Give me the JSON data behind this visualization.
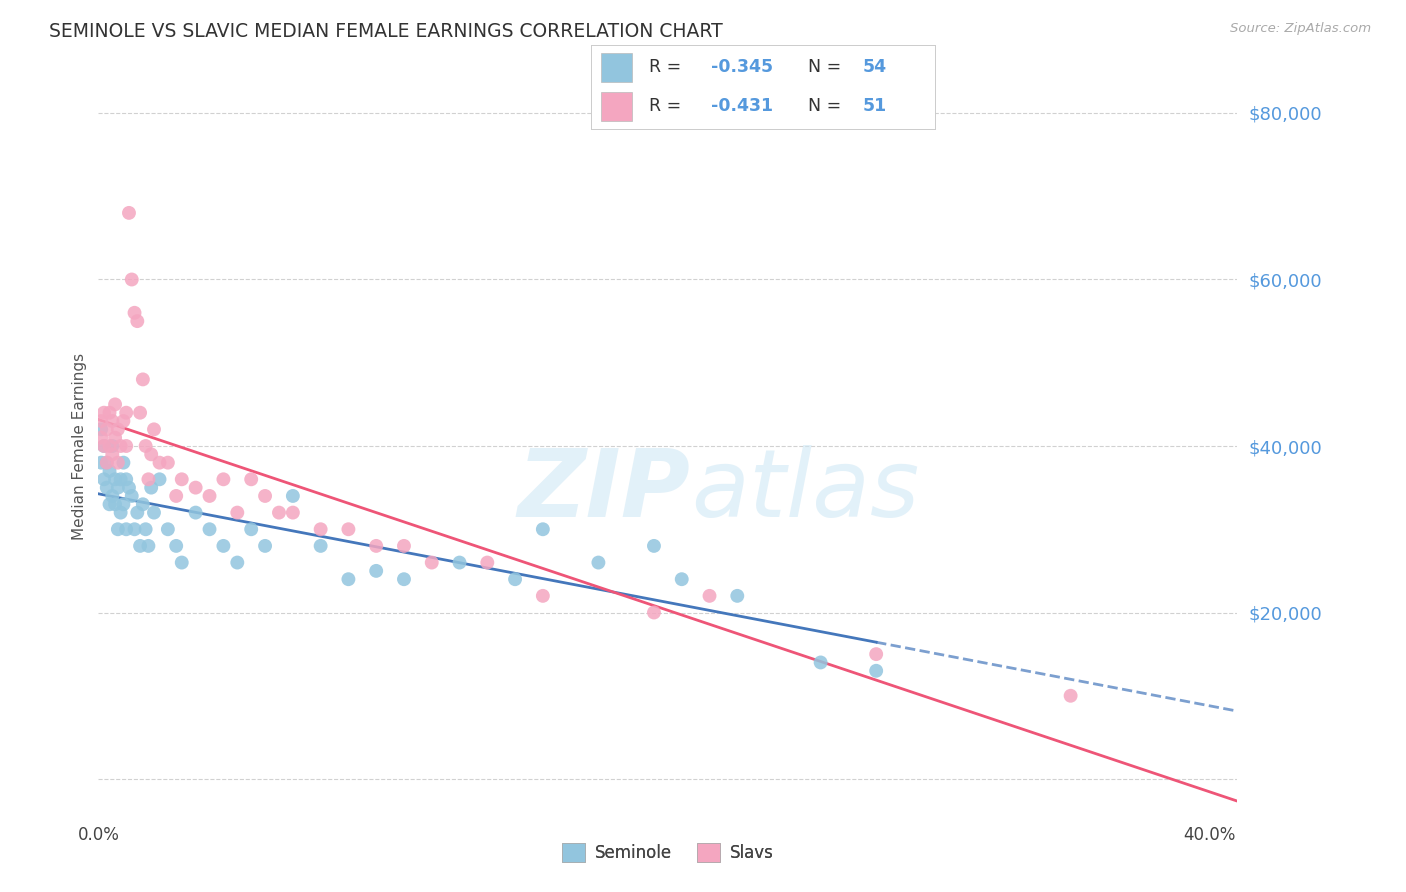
{
  "title": "SEMINOLE VS SLAVIC MEDIAN FEMALE EARNINGS CORRELATION CHART",
  "source": "Source: ZipAtlas.com",
  "ylabel": "Median Female Earnings",
  "seminole_R": -0.345,
  "seminole_N": 54,
  "slavic_R": -0.431,
  "slavic_N": 51,
  "seminole_color": "#92c5de",
  "slavic_color": "#f4a6c0",
  "seminole_line_color": "#4477bb",
  "slavic_line_color": "#ee5577",
  "watermark_zip": "ZIP",
  "watermark_atlas": "atlas",
  "background_color": "#ffffff",
  "title_color": "#333333",
  "ytick_color": "#5599dd",
  "seminole_x": [
    0.001,
    0.001,
    0.002,
    0.002,
    0.003,
    0.003,
    0.004,
    0.004,
    0.005,
    0.005,
    0.006,
    0.006,
    0.007,
    0.007,
    0.008,
    0.008,
    0.009,
    0.009,
    0.01,
    0.01,
    0.011,
    0.012,
    0.013,
    0.014,
    0.015,
    0.016,
    0.017,
    0.018,
    0.019,
    0.02,
    0.022,
    0.025,
    0.028,
    0.03,
    0.035,
    0.04,
    0.045,
    0.05,
    0.055,
    0.06,
    0.07,
    0.08,
    0.09,
    0.1,
    0.11,
    0.13,
    0.15,
    0.16,
    0.18,
    0.2,
    0.21,
    0.23,
    0.26,
    0.28
  ],
  "seminole_y": [
    42000,
    38000,
    40000,
    36000,
    35000,
    38000,
    33000,
    37000,
    40000,
    34000,
    36000,
    33000,
    35000,
    30000,
    36000,
    32000,
    38000,
    33000,
    36000,
    30000,
    35000,
    34000,
    30000,
    32000,
    28000,
    33000,
    30000,
    28000,
    35000,
    32000,
    36000,
    30000,
    28000,
    26000,
    32000,
    30000,
    28000,
    26000,
    30000,
    28000,
    34000,
    28000,
    24000,
    25000,
    24000,
    26000,
    24000,
    30000,
    26000,
    28000,
    24000,
    22000,
    14000,
    13000
  ],
  "slavic_x": [
    0.001,
    0.001,
    0.002,
    0.002,
    0.003,
    0.003,
    0.004,
    0.004,
    0.005,
    0.005,
    0.006,
    0.006,
    0.007,
    0.007,
    0.008,
    0.009,
    0.01,
    0.01,
    0.011,
    0.012,
    0.013,
    0.014,
    0.015,
    0.016,
    0.017,
    0.018,
    0.019,
    0.02,
    0.022,
    0.025,
    0.028,
    0.03,
    0.035,
    0.04,
    0.045,
    0.05,
    0.055,
    0.06,
    0.065,
    0.07,
    0.08,
    0.09,
    0.1,
    0.11,
    0.12,
    0.14,
    0.16,
    0.2,
    0.22,
    0.28,
    0.35
  ],
  "slavic_y": [
    43000,
    41000,
    44000,
    40000,
    42000,
    38000,
    44000,
    40000,
    43000,
    39000,
    45000,
    41000,
    42000,
    38000,
    40000,
    43000,
    44000,
    40000,
    68000,
    60000,
    56000,
    55000,
    44000,
    48000,
    40000,
    36000,
    39000,
    42000,
    38000,
    38000,
    34000,
    36000,
    35000,
    34000,
    36000,
    32000,
    36000,
    34000,
    32000,
    32000,
    30000,
    30000,
    28000,
    28000,
    26000,
    26000,
    22000,
    20000,
    22000,
    15000,
    10000
  ],
  "xlim": [
    0.0,
    0.41
  ],
  "ylim": [
    -5000,
    85000
  ],
  "yticks": [
    0,
    20000,
    40000,
    60000,
    80000
  ],
  "ytick_labels": [
    "",
    "$20,000",
    "$40,000",
    "$60,000",
    "$80,000"
  ],
  "xticks": [
    0.0,
    0.1,
    0.2,
    0.3,
    0.4
  ],
  "xtick_labels": [
    "0.0%",
    "",
    "",
    "",
    "40.0%"
  ]
}
